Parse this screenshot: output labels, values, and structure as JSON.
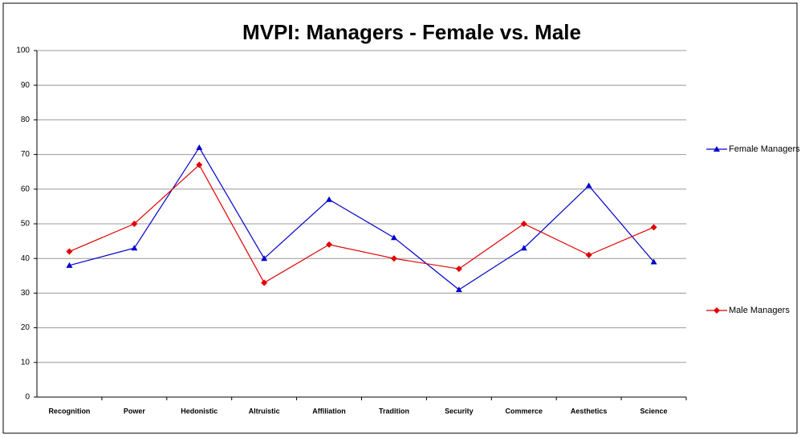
{
  "chart_data": {
    "type": "line",
    "title": "MVPI:  Managers - Female vs. Male",
    "categories": [
      "Recognition",
      "Power",
      "Hedonistic",
      "Altruistic",
      "Affiliation",
      "Tradition",
      "Security",
      "Commerce",
      "Aesthetics",
      "Science"
    ],
    "series": [
      {
        "name": "Female Managers",
        "color": "#0000cc",
        "marker": "triangle",
        "values": [
          38,
          43,
          72,
          40,
          57,
          46,
          31,
          43,
          61,
          39
        ]
      },
      {
        "name": "Male Managers",
        "color": "#e00000",
        "marker": "diamond",
        "values": [
          42,
          50,
          67,
          33,
          44,
          40,
          37,
          50,
          41,
          49
        ]
      }
    ],
    "ylim": [
      0,
      100
    ],
    "yticks": [
      0,
      10,
      20,
      30,
      40,
      50,
      60,
      70,
      80,
      90,
      100
    ],
    "grid": true,
    "legend": "right"
  }
}
